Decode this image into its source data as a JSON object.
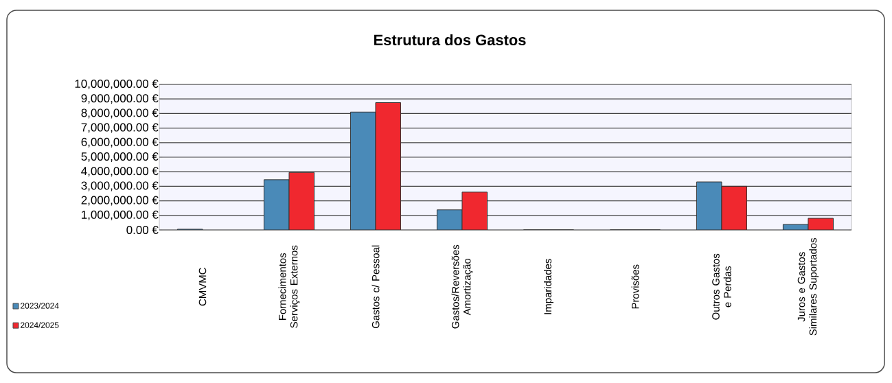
{
  "chart_data": {
    "type": "bar",
    "title": "Estrutura dos Gastos",
    "categories": [
      "CMVMC",
      "Fornecimentos Serviços Externos",
      "Gastos c/ Pessoal",
      "Gastos/Reversões Amortização",
      "Imparidades",
      "Provisões",
      "Outros Gastos e Perdas",
      "Juros e Gastos Similares Suportados"
    ],
    "series": [
      {
        "name": "2023/2024",
        "color": "#4a8ab8",
        "values": [
          50000,
          3450000,
          8100000,
          1380000,
          0,
          0,
          3300000,
          380000
        ]
      },
      {
        "name": "2024/2025",
        "color": "#f0282f",
        "values": [
          null,
          3950000,
          8750000,
          2600000,
          0,
          0,
          3000000,
          800000
        ]
      }
    ],
    "ylim": [
      0,
      10000000
    ],
    "yticks": [
      {
        "value": 0,
        "label": "0.00 €"
      },
      {
        "value": 1000000,
        "label": "1,000,000.00 €"
      },
      {
        "value": 2000000,
        "label": "2,000,000.00 €"
      },
      {
        "value": 3000000,
        "label": "3,000,000.00 €"
      },
      {
        "value": 4000000,
        "label": "4,000,000.00 €"
      },
      {
        "value": 5000000,
        "label": "5,000,000.00 €"
      },
      {
        "value": 6000000,
        "label": "6,000,000.00 €"
      },
      {
        "value": 7000000,
        "label": "7,000,000.00 €"
      },
      {
        "value": 8000000,
        "label": "8,000,000.00 €"
      },
      {
        "value": 9000000,
        "label": "9,000,000.00 €"
      },
      {
        "value": 10000000,
        "label": "10,000,000.00 €"
      }
    ],
    "grid": "y",
    "legend": "bottom left"
  }
}
